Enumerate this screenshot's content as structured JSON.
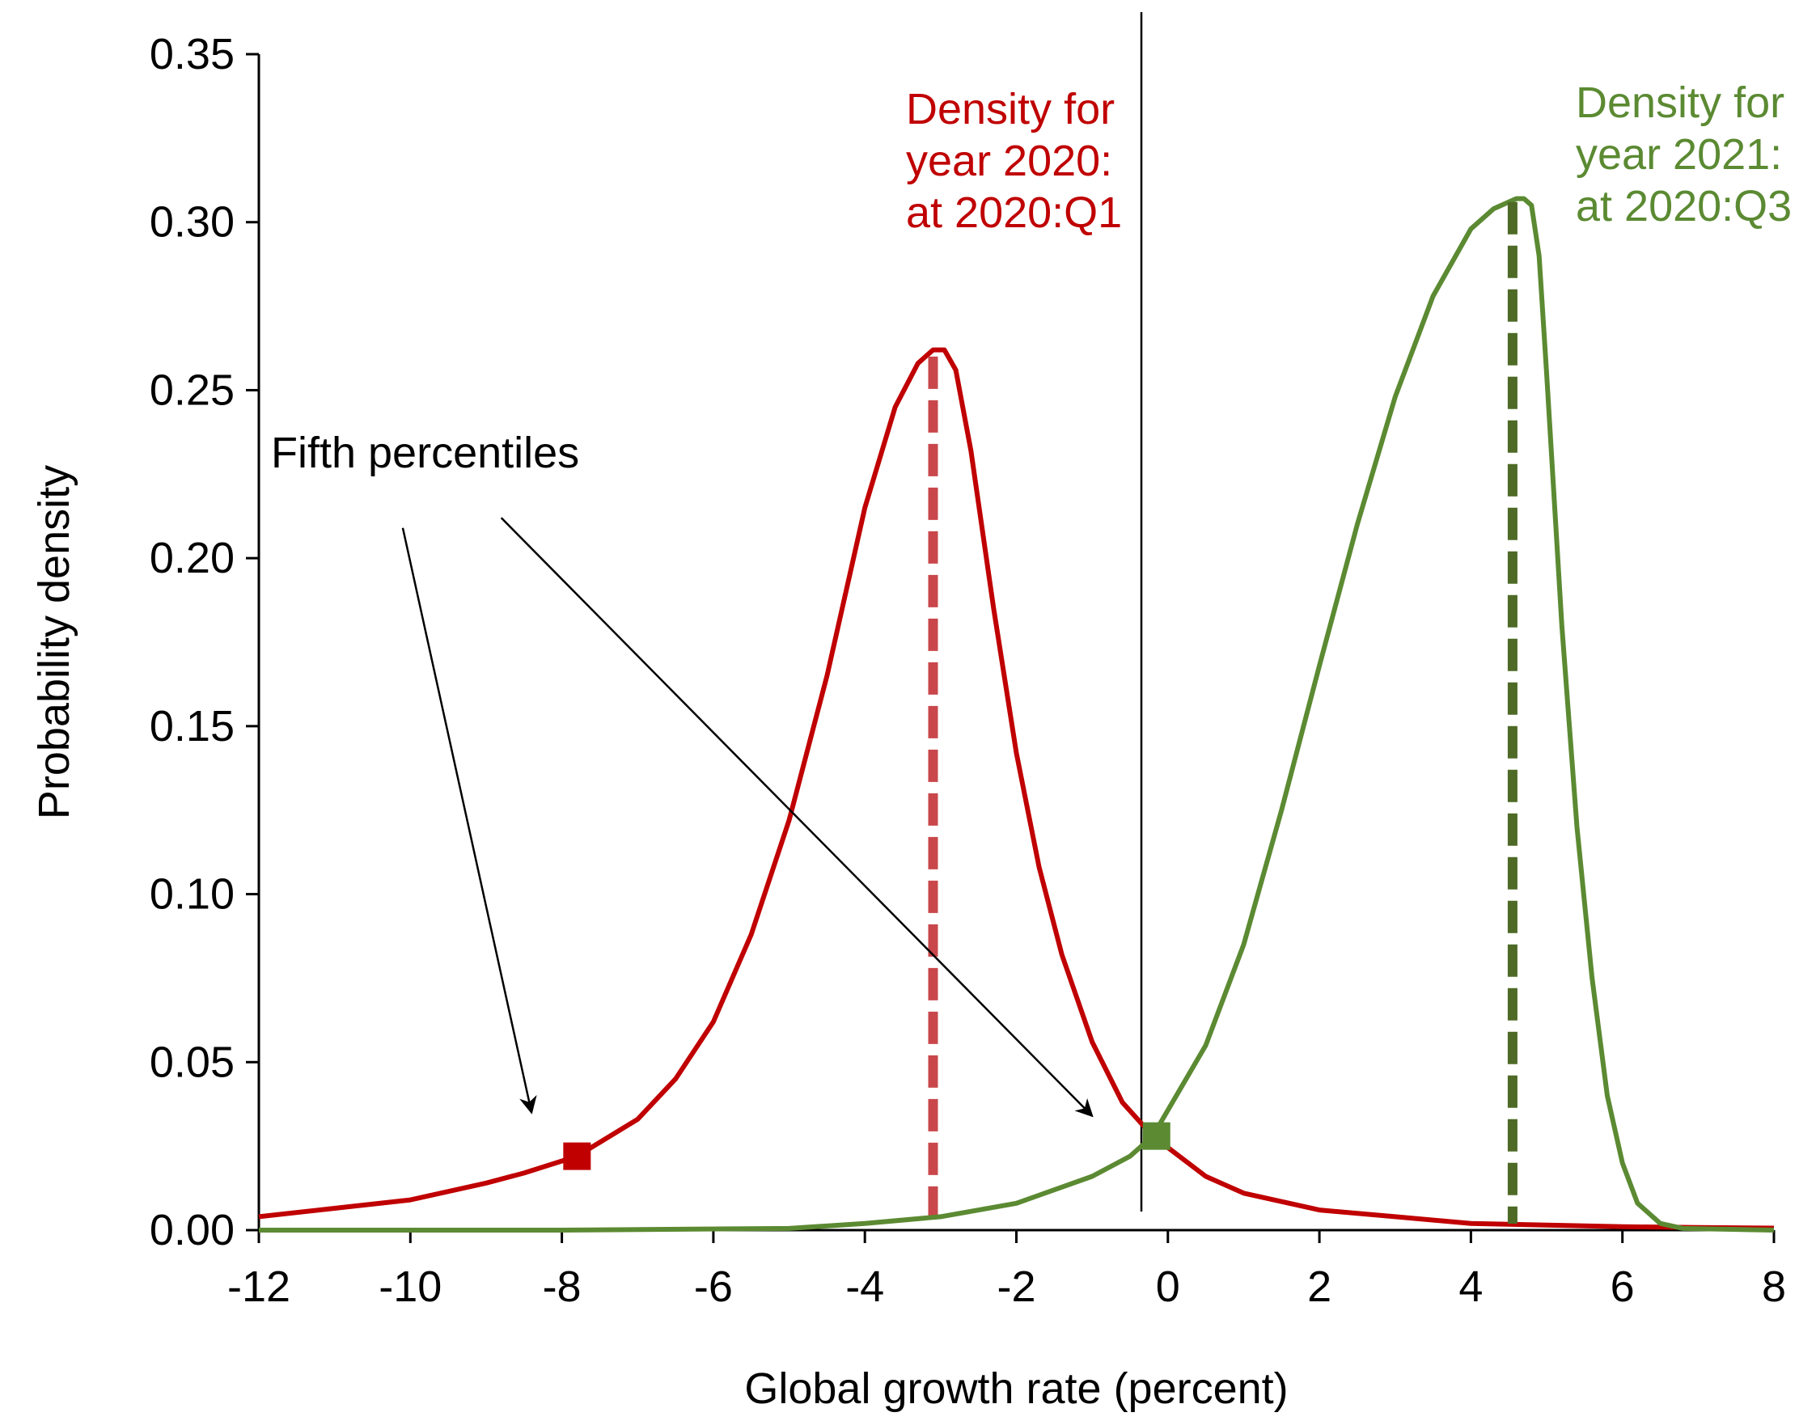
{
  "chart_data": {
    "type": "line",
    "title": "",
    "xlabel": "Global growth rate (percent)",
    "ylabel": "Probability density",
    "xlim": [
      -12,
      8
    ],
    "ylim": [
      0,
      0.35
    ],
    "x_ticks": [
      -12,
      -10,
      -8,
      -6,
      -4,
      -2,
      0,
      2,
      4,
      6,
      8
    ],
    "y_ticks": [
      0.0,
      0.05,
      0.1,
      0.15,
      0.2,
      0.25,
      0.3,
      0.35
    ],
    "x_tick_labels": [
      "-12",
      "-10",
      "-8",
      "-6",
      "-4",
      "-2",
      "0",
      "2",
      "4",
      "6",
      "8"
    ],
    "y_tick_labels": [
      "0.00",
      "0.05",
      "0.10",
      "0.15",
      "0.20",
      "0.25",
      "0.30",
      "0.35"
    ],
    "grid": false,
    "colors": {
      "series_2020": "#c00000",
      "series_2021": "#5b8a32",
      "median_2020": "#c9474b",
      "median_2021": "#4e6a26",
      "axis": "#000000"
    },
    "series": [
      {
        "label_lines": [
          "Density for",
          "year 2020:",
          "at 2020:Q1"
        ],
        "x": [
          -12,
          -11,
          -10,
          -9,
          -8.5,
          -7.8,
          -7,
          -6.5,
          -6,
          -5.5,
          -5,
          -4.5,
          -4,
          -3.6,
          -3.3,
          -3.1,
          -2.95,
          -2.8,
          -2.6,
          -2.3,
          -2,
          -1.7,
          -1.4,
          -1,
          -0.6,
          -0.2,
          0.5,
          1,
          2,
          3,
          4,
          5,
          6,
          7,
          8
        ],
        "y": [
          0.004,
          0.0065,
          0.009,
          0.014,
          0.017,
          0.022,
          0.033,
          0.045,
          0.062,
          0.088,
          0.122,
          0.165,
          0.215,
          0.245,
          0.258,
          0.262,
          0.262,
          0.256,
          0.232,
          0.185,
          0.142,
          0.108,
          0.082,
          0.056,
          0.038,
          0.028,
          0.016,
          0.011,
          0.006,
          0.004,
          0.002,
          0.0015,
          0.001,
          0.0008,
          0.0006
        ],
        "median_x": -3.1,
        "median_y": 0.26,
        "fifth_percentile": {
          "x": -7.8,
          "y": 0.022
        }
      },
      {
        "label_lines": [
          "Density for",
          "year 2021:",
          "at 2020:Q3"
        ],
        "x": [
          -12,
          -8,
          -5,
          -4,
          -3,
          -2,
          -1,
          -0.5,
          -0.2,
          0.5,
          1,
          1.5,
          2,
          2.5,
          3,
          3.5,
          4,
          4.3,
          4.5,
          4.6,
          4.7,
          4.8,
          4.9,
          5.0,
          5.2,
          5.4,
          5.6,
          5.8,
          6.0,
          6.2,
          6.5,
          6.8,
          8
        ],
        "y": [
          0,
          0,
          0.0005,
          0.002,
          0.004,
          0.008,
          0.016,
          0.022,
          0.028,
          0.055,
          0.085,
          0.125,
          0.168,
          0.21,
          0.248,
          0.278,
          0.298,
          0.304,
          0.306,
          0.307,
          0.307,
          0.305,
          0.29,
          0.255,
          0.18,
          0.12,
          0.075,
          0.04,
          0.02,
          0.008,
          0.002,
          0.0005,
          0
        ],
        "median_x": 4.55,
        "median_y": 0.306,
        "fifth_percentile": {
          "x": -0.15,
          "y": 0.028
        }
      }
    ],
    "vertical_line_x": -0.35,
    "annotation": {
      "text": "Fifth percentiles",
      "arrows": [
        {
          "from": [
            -10.1,
            0.209
          ],
          "to": [
            -8.4,
            0.035
          ]
        },
        {
          "from": [
            -8.8,
            0.212
          ],
          "to": [
            -1.0,
            0.034
          ]
        }
      ]
    }
  }
}
